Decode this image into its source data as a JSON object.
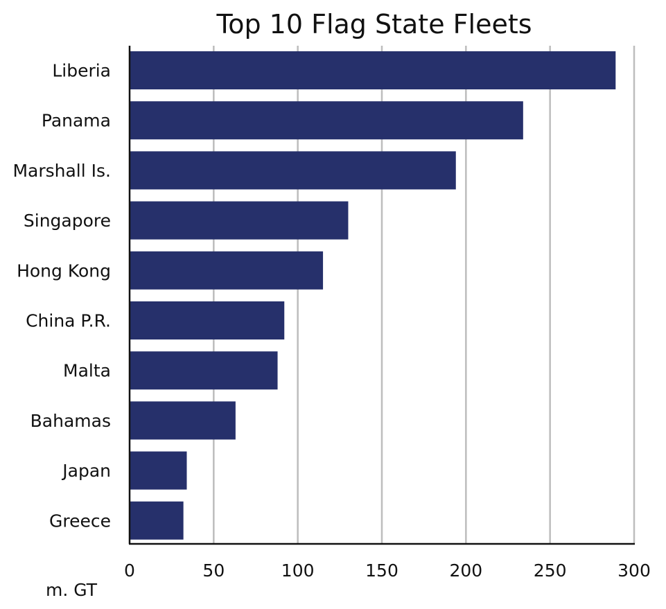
{
  "chart_data": {
    "type": "bar",
    "orientation": "horizontal",
    "title": "Top 10 Flag State Fleets",
    "xlabel": "m. GT",
    "ylabel": "",
    "categories": [
      "Liberia",
      "Panama",
      "Marshall Is.",
      "Singapore",
      "Hong Kong",
      "China P.R.",
      "Malta",
      "Bahamas",
      "Japan",
      "Greece"
    ],
    "values": [
      289,
      234,
      194,
      130,
      115,
      92,
      88,
      63,
      34,
      32
    ],
    "xlim": [
      0,
      300
    ],
    "ticks": [
      0,
      50,
      100,
      150,
      200,
      250,
      300
    ],
    "tick_labels": [
      "0",
      "50",
      "100",
      "150",
      "200",
      "250",
      "300"
    ],
    "grid": "vertical",
    "legend": "none",
    "colors": {
      "bar": "#26306b",
      "grid": "#bdbdbd",
      "axis": "#111111"
    }
  }
}
